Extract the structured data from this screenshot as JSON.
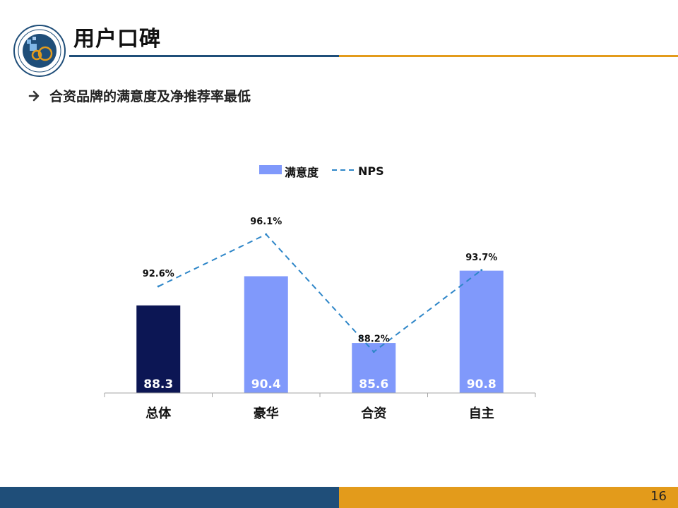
{
  "header": {
    "title": "用户口碑"
  },
  "bullet": {
    "text": "合资品牌的满意度及净推荐率最低",
    "icon": "arrow-right-icon"
  },
  "footer": {
    "page_number": "16",
    "colors": {
      "left": "#1f4e79",
      "right": "#e39b1b"
    }
  },
  "chart_data": {
    "type": "bar",
    "categories": [
      "总体",
      "豪华",
      "合资",
      "自主"
    ],
    "series": [
      {
        "name": "满意度",
        "type": "bar",
        "values": [
          88.3,
          90.4,
          85.6,
          90.8
        ],
        "value_labels": [
          "88.3",
          "90.4",
          "85.6",
          "90.8"
        ],
        "colors": [
          "#0c1654",
          "#8099fb",
          "#8099fb",
          "#8099fb"
        ]
      },
      {
        "name": "NPS",
        "type": "line",
        "style": "dashed",
        "color": "#2e86c8",
        "values": [
          92.6,
          96.1,
          88.2,
          93.7
        ],
        "value_labels": [
          "92.6%",
          "96.1%",
          "88.2%",
          "93.7%"
        ]
      }
    ],
    "bar_axis_range": [
      82,
      92
    ],
    "line_axis_range": [
      86,
      100
    ],
    "legend_position": "top-center",
    "grid": false
  }
}
